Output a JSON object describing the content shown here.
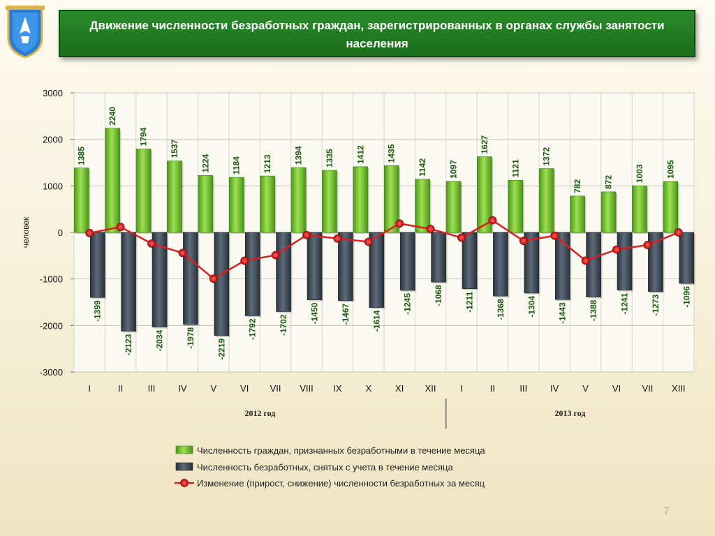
{
  "header": {
    "title": "Движение численности безработных граждан, зарегистрированных в органах службы занятости населения"
  },
  "page_number": "7",
  "colors": {
    "registered": "#6cbf2a",
    "removed": "#3d4a58",
    "change": "#d82020",
    "title_bg": "#1f741f"
  },
  "chart_data": {
    "type": "bar",
    "ylabel": "человек",
    "ylim": [
      -3000,
      3000
    ],
    "yticks": [
      3000,
      2000,
      1000,
      0,
      -1000,
      -2000,
      -3000
    ],
    "grid": true,
    "legend_position": "bottom",
    "categories": [
      "I",
      "II",
      "III",
      "IV",
      "V",
      "VI",
      "VII",
      "VIII",
      "IX",
      "X",
      "XI",
      "XII",
      "I",
      "II",
      "III",
      "IV",
      "V",
      "VI",
      "VII",
      "XIII"
    ],
    "groups": [
      {
        "label": "2012 год",
        "count": 12
      },
      {
        "label": "2013 год",
        "count": 8
      }
    ],
    "series": [
      {
        "name": "Численность граждан, признанных безработными в течение месяца",
        "type": "bar",
        "values": [
          1385,
          2240,
          1794,
          1537,
          1224,
          1184,
          1213,
          1394,
          1335,
          1412,
          1435,
          1142,
          1097,
          1627,
          1121,
          1372,
          782,
          872,
          1003,
          1095
        ]
      },
      {
        "name": "Численность безработных, снятых с учета в течение месяца",
        "type": "bar",
        "values": [
          -1399,
          -2123,
          -2034,
          -1978,
          -2219,
          -1792,
          -1702,
          -1450,
          -1467,
          -1614,
          -1245,
          -1068,
          -1211,
          -1368,
          -1304,
          -1443,
          -1388,
          -1241,
          -1273,
          -1096
        ]
      },
      {
        "name": "Изменение (прирост, снижение) численности безработных за месяц",
        "type": "line",
        "values": [
          -14,
          117,
          -240,
          -441,
          -995,
          -608,
          -489,
          -56,
          -132,
          -202,
          190,
          74,
          -114,
          259,
          -183,
          -71,
          -606,
          -369,
          -270,
          -1
        ]
      }
    ]
  }
}
